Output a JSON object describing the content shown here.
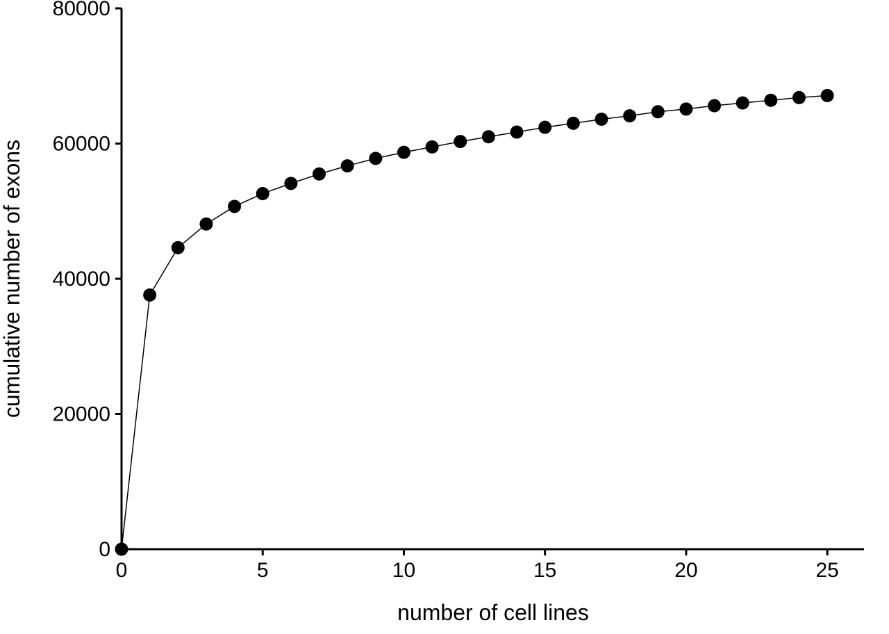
{
  "figure": {
    "background": "#ffffff"
  },
  "chart_data": {
    "type": "line",
    "title": "",
    "xlabel": "number of cell lines",
    "ylabel": "cumulative number of exons",
    "x": [
      0,
      1,
      2,
      3,
      4,
      5,
      6,
      7,
      8,
      9,
      10,
      11,
      12,
      13,
      14,
      15,
      16,
      17,
      18,
      19,
      20,
      21,
      22,
      23,
      24,
      25
    ],
    "y": [
      0,
      37600,
      44600,
      48100,
      50700,
      52600,
      54100,
      55500,
      56700,
      57800,
      58700,
      59500,
      60300,
      61000,
      61700,
      62400,
      63000,
      63600,
      64100,
      64700,
      65100,
      65600,
      66000,
      66400,
      66800,
      67100
    ],
    "xlim": [
      0,
      26.3
    ],
    "ylim": [
      0,
      80000
    ],
    "xticks": [
      0,
      5,
      10,
      15,
      20,
      25
    ],
    "yticks": [
      0,
      20000,
      40000,
      60000,
      80000
    ],
    "grid": false,
    "legend": "none",
    "marker": "filled-circle",
    "marker_radius": 9.5,
    "line_width": 1.5,
    "axis_width": 3,
    "tick_length": 9,
    "line_color": "#000000",
    "marker_color": "#000000",
    "axis_color": "#000000",
    "text_color": "#000000"
  }
}
